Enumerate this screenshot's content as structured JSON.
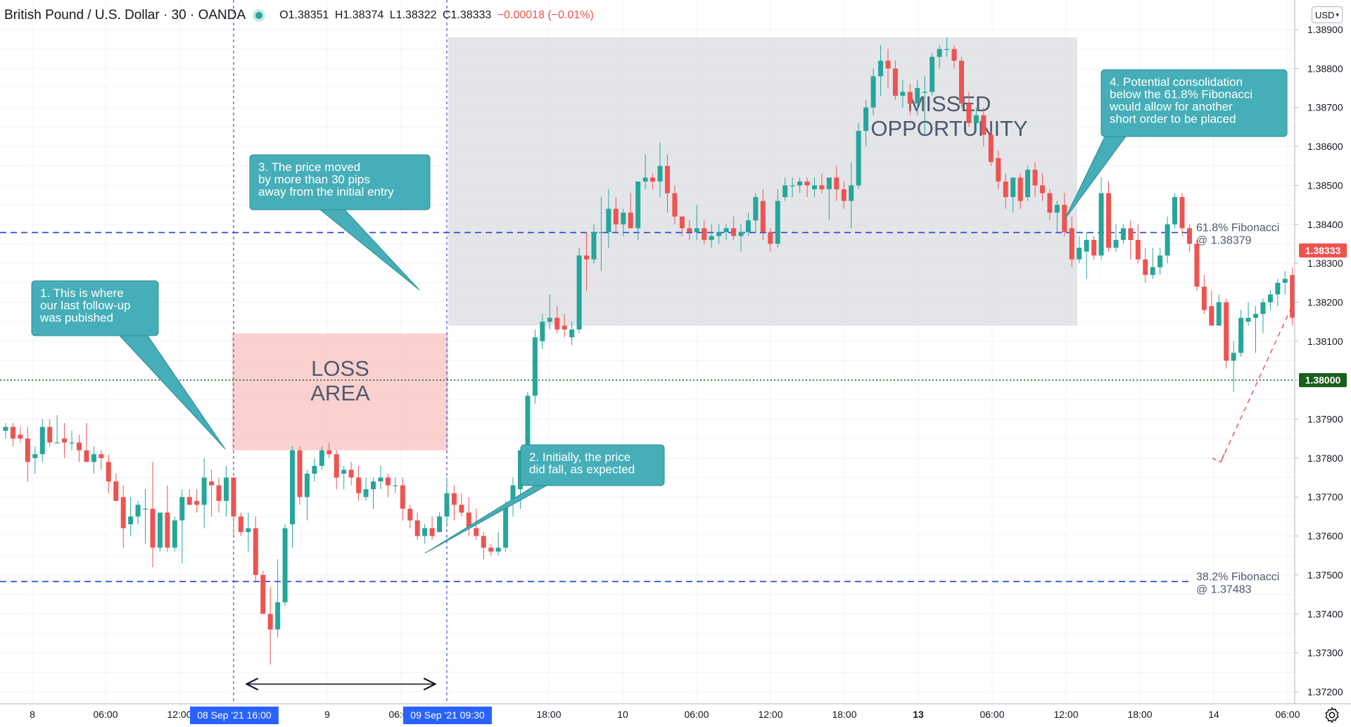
{
  "header": {
    "symbol": "British Pound / U.S. Dollar · 30 · OANDA",
    "open": "O1.38351",
    "high": "H1.38374",
    "low": "L1.38322",
    "close": "C1.38333",
    "change": "−0.00018 (−0.01%)"
  },
  "currency": "USD",
  "colors": {
    "up": "#26a69a",
    "down": "#ef5350",
    "fib_line": "#1e40d8",
    "callout": "#45aeb8",
    "loss_area": "#f9c9c6",
    "missed_area": "#d9dadf"
  },
  "chart_data": {
    "type": "candlestick",
    "instrument": "British Pound / U.S. Dollar",
    "timeframe": "30",
    "y_range": [
      1.3715,
      1.3893
    ],
    "y_ticks": [
      "1.38900",
      "1.38800",
      "1.38700",
      "1.38600",
      "1.38500",
      "1.38400",
      "1.38300",
      "1.38200",
      "1.38100",
      "1.38000",
      "1.37900",
      "1.37800",
      "1.37700",
      "1.37600",
      "1.37500",
      "1.37400",
      "1.37300",
      "1.37200"
    ],
    "x_labels": [
      "8",
      "06:00",
      "12:00",
      "9",
      "06:00",
      "18:00",
      "10",
      "06:00",
      "12:00",
      "18:00",
      "13",
      "06:00",
      "12:00",
      "18:00",
      "14",
      "06:00"
    ],
    "candles": [
      [
        1.3787,
        1.3789,
        1.3785,
        1.3788
      ],
      [
        1.3788,
        1.3789,
        1.3783,
        1.3785
      ],
      [
        1.3786,
        1.3788,
        1.3784,
        1.3785
      ],
      [
        1.3785,
        1.3788,
        1.3774,
        1.3779
      ],
      [
        1.378,
        1.3783,
        1.3776,
        1.3781
      ],
      [
        1.3781,
        1.379,
        1.3779,
        1.3788
      ],
      [
        1.3788,
        1.379,
        1.3783,
        1.3784
      ],
      [
        1.3784,
        1.3791,
        1.3784,
        1.3784
      ],
      [
        1.3785,
        1.3789,
        1.378,
        1.3784
      ],
      [
        1.3784,
        1.3787,
        1.3782,
        1.3784
      ],
      [
        1.3784,
        1.3786,
        1.3779,
        1.3782
      ],
      [
        1.3782,
        1.3789,
        1.3779,
        1.3779
      ],
      [
        1.3779,
        1.3783,
        1.3776,
        1.3781
      ],
      [
        1.3781,
        1.3782,
        1.3777,
        1.378
      ],
      [
        1.3779,
        1.3781,
        1.3771,
        1.3774
      ],
      [
        1.3774,
        1.3776,
        1.3769,
        1.3769
      ],
      [
        1.377,
        1.3773,
        1.3757,
        1.3762
      ],
      [
        1.3763,
        1.377,
        1.376,
        1.3765
      ],
      [
        1.3765,
        1.3769,
        1.3763,
        1.3768
      ],
      [
        1.3767,
        1.3772,
        1.3758,
        1.3767
      ],
      [
        1.3767,
        1.3779,
        1.3752,
        1.3757
      ],
      [
        1.3757,
        1.3766,
        1.3756,
        1.3766
      ],
      [
        1.3766,
        1.3773,
        1.3756,
        1.3757
      ],
      [
        1.3757,
        1.3765,
        1.3756,
        1.3764
      ],
      [
        1.3764,
        1.3772,
        1.3753,
        1.377
      ],
      [
        1.377,
        1.3772,
        1.3768,
        1.3768
      ],
      [
        1.3769,
        1.3772,
        1.3766,
        1.3768
      ],
      [
        1.3768,
        1.378,
        1.3762,
        1.3775
      ],
      [
        1.3774,
        1.3777,
        1.3765,
        1.3773
      ],
      [
        1.3773,
        1.3775,
        1.3766,
        1.3769
      ],
      [
        1.3769,
        1.3778,
        1.3765,
        1.3775
      ],
      [
        1.3775,
        1.3775,
        1.376,
        1.3765
      ],
      [
        1.3765,
        1.3766,
        1.376,
        1.3761
      ],
      [
        1.3761,
        1.3766,
        1.3756,
        1.3762
      ],
      [
        1.3762,
        1.3765,
        1.3748,
        1.375
      ],
      [
        1.375,
        1.3751,
        1.374,
        1.374
      ],
      [
        1.374,
        1.3747,
        1.3727,
        1.3736
      ],
      [
        1.3736,
        1.3754,
        1.3734,
        1.3743
      ],
      [
        1.3743,
        1.3763,
        1.3742,
        1.3762
      ],
      [
        1.3763,
        1.3783,
        1.3757,
        1.3782
      ],
      [
        1.3782,
        1.3783,
        1.3768,
        1.377
      ],
      [
        1.377,
        1.3777,
        1.3764,
        1.3776
      ],
      [
        1.3776,
        1.378,
        1.3774,
        1.3778
      ],
      [
        1.3778,
        1.3783,
        1.3777,
        1.3782
      ],
      [
        1.3782,
        1.3784,
        1.378,
        1.3781
      ],
      [
        1.3781,
        1.3782,
        1.3772,
        1.3775
      ],
      [
        1.3776,
        1.3778,
        1.3772,
        1.3777
      ],
      [
        1.3777,
        1.3779,
        1.3773,
        1.3775
      ],
      [
        1.3775,
        1.3778,
        1.3769,
        1.3771
      ],
      [
        1.377,
        1.3775,
        1.3769,
        1.3772
      ],
      [
        1.3772,
        1.3775,
        1.3767,
        1.3774
      ],
      [
        1.3774,
        1.3778,
        1.3772,
        1.3775
      ],
      [
        1.3775,
        1.3776,
        1.377,
        1.3773
      ],
      [
        1.3773,
        1.3775,
        1.3771,
        1.3773
      ],
      [
        1.3773,
        1.3775,
        1.3764,
        1.3767
      ],
      [
        1.3767,
        1.3768,
        1.3762,
        1.3764
      ],
      [
        1.3764,
        1.3766,
        1.3759,
        1.376
      ],
      [
        1.376,
        1.3763,
        1.3758,
        1.3762
      ],
      [
        1.3762,
        1.3765,
        1.3759,
        1.376
      ],
      [
        1.3761,
        1.3766,
        1.3761,
        1.3765
      ],
      [
        1.3765,
        1.3775,
        1.3763,
        1.3771
      ],
      [
        1.3771,
        1.3773,
        1.3764,
        1.3768
      ],
      [
        1.3768,
        1.3771,
        1.3765,
        1.3766
      ],
      [
        1.3766,
        1.377,
        1.376,
        1.3762
      ],
      [
        1.3762,
        1.3767,
        1.3759,
        1.376
      ],
      [
        1.376,
        1.3761,
        1.3754,
        1.3757
      ],
      [
        1.3757,
        1.3758,
        1.3755,
        1.3756
      ],
      [
        1.3756,
        1.3761,
        1.3755,
        1.3757
      ],
      [
        1.3757,
        1.3769,
        1.3756,
        1.3768
      ],
      [
        1.3769,
        1.3775,
        1.3765,
        1.3773
      ],
      [
        1.3772,
        1.3782,
        1.3767,
        1.3782
      ],
      [
        1.3782,
        1.3797,
        1.3781,
        1.3796
      ],
      [
        1.3796,
        1.3813,
        1.3794,
        1.3811
      ],
      [
        1.381,
        1.3817,
        1.3808,
        1.3815
      ],
      [
        1.3815,
        1.3822,
        1.3813,
        1.3816
      ],
      [
        1.3816,
        1.3819,
        1.3812,
        1.3813
      ],
      [
        1.3814,
        1.3817,
        1.3811,
        1.3813
      ],
      [
        1.3811,
        1.3815,
        1.3809,
        1.3813
      ],
      [
        1.3813,
        1.3834,
        1.3812,
        1.3832
      ],
      [
        1.3832,
        1.3838,
        1.3823,
        1.3831
      ],
      [
        1.3831,
        1.384,
        1.383,
        1.3838
      ],
      [
        1.3838,
        1.3847,
        1.3828,
        1.3838
      ],
      [
        1.3838,
        1.3849,
        1.3834,
        1.3844
      ],
      [
        1.3844,
        1.3847,
        1.3838,
        1.384
      ],
      [
        1.384,
        1.3844,
        1.3837,
        1.3843
      ],
      [
        1.3843,
        1.3848,
        1.3839,
        1.3839
      ],
      [
        1.3839,
        1.3851,
        1.3836,
        1.3851
      ],
      [
        1.3851,
        1.3858,
        1.3849,
        1.3852
      ],
      [
        1.3852,
        1.3853,
        1.3849,
        1.3851
      ],
      [
        1.3851,
        1.3861,
        1.3847,
        1.3855
      ],
      [
        1.3855,
        1.3858,
        1.3843,
        1.3848
      ],
      [
        1.3848,
        1.385,
        1.384,
        1.3842
      ],
      [
        1.3842,
        1.3842,
        1.3837,
        1.3839
      ],
      [
        1.3839,
        1.3841,
        1.3836,
        1.3838
      ],
      [
        1.3838,
        1.3845,
        1.3836,
        1.3839
      ],
      [
        1.3839,
        1.3841,
        1.3835,
        1.3836
      ],
      [
        1.3836,
        1.384,
        1.3834,
        1.3837
      ],
      [
        1.3837,
        1.384,
        1.3835,
        1.3838
      ],
      [
        1.3838,
        1.384,
        1.3836,
        1.3839
      ],
      [
        1.3839,
        1.3842,
        1.3836,
        1.3837
      ],
      [
        1.3837,
        1.384,
        1.3833,
        1.3838
      ],
      [
        1.3838,
        1.3843,
        1.3837,
        1.3841
      ],
      [
        1.3841,
        1.3848,
        1.3838,
        1.3847
      ],
      [
        1.3846,
        1.3849,
        1.3836,
        1.3838
      ],
      [
        1.3838,
        1.3839,
        1.3833,
        1.3835
      ],
      [
        1.3835,
        1.3849,
        1.3834,
        1.3846
      ],
      [
        1.3847,
        1.3852,
        1.3846,
        1.385
      ],
      [
        1.385,
        1.3852,
        1.3847,
        1.385
      ],
      [
        1.385,
        1.3852,
        1.3848,
        1.3851
      ],
      [
        1.3851,
        1.3852,
        1.3847,
        1.385
      ],
      [
        1.3849,
        1.3852,
        1.3847,
        1.385
      ],
      [
        1.385,
        1.3853,
        1.3848,
        1.3849
      ],
      [
        1.3849,
        1.3852,
        1.3841,
        1.3852
      ],
      [
        1.3852,
        1.3855,
        1.3846,
        1.3849
      ],
      [
        1.3849,
        1.3851,
        1.3844,
        1.3846
      ],
      [
        1.3846,
        1.3856,
        1.3839,
        1.385
      ],
      [
        1.385,
        1.3866,
        1.3849,
        1.3864
      ],
      [
        1.3864,
        1.3872,
        1.386,
        1.387
      ],
      [
        1.387,
        1.388,
        1.3868,
        1.3878
      ],
      [
        1.3878,
        1.3886,
        1.3873,
        1.3882
      ],
      [
        1.3882,
        1.3885,
        1.3875,
        1.388
      ],
      [
        1.388,
        1.3882,
        1.3872,
        1.3873
      ],
      [
        1.3873,
        1.3877,
        1.387,
        1.3874
      ],
      [
        1.3874,
        1.3876,
        1.3868,
        1.3871
      ],
      [
        1.3871,
        1.3877,
        1.3868,
        1.3875
      ],
      [
        1.3874,
        1.3878,
        1.3863,
        1.3874
      ],
      [
        1.3874,
        1.3884,
        1.3873,
        1.3883
      ],
      [
        1.3883,
        1.3886,
        1.388,
        1.3885
      ],
      [
        1.3885,
        1.3888,
        1.3883,
        1.3885
      ],
      [
        1.3885,
        1.3886,
        1.388,
        1.3882
      ],
      [
        1.3882,
        1.3883,
        1.387,
        1.3871
      ],
      [
        1.3871,
        1.3874,
        1.3865,
        1.3866
      ],
      [
        1.3866,
        1.387,
        1.3864,
        1.3868
      ],
      [
        1.3868,
        1.387,
        1.386,
        1.3863
      ],
      [
        1.3863,
        1.3864,
        1.3855,
        1.3856
      ],
      [
        1.3857,
        1.3859,
        1.3849,
        1.3851
      ],
      [
        1.3851,
        1.3853,
        1.3844,
        1.3847
      ],
      [
        1.3847,
        1.3852,
        1.3843,
        1.3852
      ],
      [
        1.3852,
        1.3853,
        1.3844,
        1.3846
      ],
      [
        1.3847,
        1.3855,
        1.3846,
        1.3854
      ],
      [
        1.3854,
        1.3856,
        1.3847,
        1.385
      ],
      [
        1.385,
        1.3853,
        1.3846,
        1.3848
      ],
      [
        1.3848,
        1.3849,
        1.3841,
        1.3843
      ],
      [
        1.3843,
        1.3846,
        1.3838,
        1.3845
      ],
      [
        1.3845,
        1.3848,
        1.3837,
        1.3838
      ],
      [
        1.3839,
        1.3842,
        1.3829,
        1.3831
      ],
      [
        1.3831,
        1.3837,
        1.383,
        1.3834
      ],
      [
        1.3833,
        1.3838,
        1.3826,
        1.3836
      ],
      [
        1.3836,
        1.3837,
        1.3831,
        1.3832
      ],
      [
        1.3832,
        1.3852,
        1.3831,
        1.3848
      ],
      [
        1.3848,
        1.3851,
        1.3833,
        1.3834
      ],
      [
        1.3834,
        1.384,
        1.3833,
        1.3836
      ],
      [
        1.3836,
        1.384,
        1.3835,
        1.3839
      ],
      [
        1.3839,
        1.3841,
        1.3831,
        1.3836
      ],
      [
        1.3836,
        1.384,
        1.383,
        1.3831
      ],
      [
        1.3831,
        1.3834,
        1.3825,
        1.3827
      ],
      [
        1.3827,
        1.3834,
        1.3826,
        1.3829
      ],
      [
        1.3829,
        1.3834,
        1.3827,
        1.3832
      ],
      [
        1.3832,
        1.3842,
        1.383,
        1.384
      ],
      [
        1.384,
        1.3848,
        1.3839,
        1.3847
      ],
      [
        1.3847,
        1.3848,
        1.3837,
        1.3839
      ],
      [
        1.3839,
        1.384,
        1.3833,
        1.3835
      ],
      [
        1.3835,
        1.3836,
        1.3823,
        1.3824
      ],
      [
        1.3824,
        1.3827,
        1.3817,
        1.3818
      ],
      [
        1.3819,
        1.3823,
        1.3815,
        1.3814
      ],
      [
        1.3814,
        1.3822,
        1.3814,
        1.382
      ],
      [
        1.382,
        1.3821,
        1.3803,
        1.3805
      ],
      [
        1.3805,
        1.381,
        1.3797,
        1.3807
      ],
      [
        1.3807,
        1.3818,
        1.3806,
        1.3816
      ],
      [
        1.3815,
        1.382,
        1.3814,
        1.3816
      ],
      [
        1.3816,
        1.3819,
        1.3807,
        1.3817
      ],
      [
        1.3817,
        1.3821,
        1.3812,
        1.382
      ],
      [
        1.382,
        1.3823,
        1.3818,
        1.3822
      ],
      [
        1.3822,
        1.3826,
        1.3819,
        1.3825
      ],
      [
        1.3825,
        1.3828,
        1.3822,
        1.3826
      ],
      [
        1.3827,
        1.3829,
        1.3814,
        1.3816
      ],
      [
        1.3816,
        1.383,
        1.3815,
        1.3826
      ],
      [
        1.3826,
        1.3841,
        1.3822,
        1.3836
      ],
      [
        1.3836,
        1.3839,
        1.3832,
        1.3833
      ]
    ],
    "horizontal_lines": [
      {
        "price": 1.38379,
        "style": "dashed",
        "label": "61.8% Fibonacci",
        "sublabel": "@ 1.38379"
      },
      {
        "price": 1.37483,
        "style": "dashed",
        "label": "38.2% Fibonacci",
        "sublabel": "@ 1.37483"
      },
      {
        "price": 1.38,
        "style": "dotted",
        "price_label": "1.38000"
      }
    ],
    "last_price_label": "1.38333",
    "time_markers": [
      "08 Sep '21   16:00",
      "09 Sep '21   09:30"
    ],
    "regions": [
      {
        "name": "loss-area",
        "label_lines": [
          "LOSS",
          "AREA"
        ],
        "from_candle": 31,
        "to_candle": 60,
        "price_from": 1.3782,
        "price_to": 1.3812
      },
      {
        "name": "missed-opportunity",
        "label_lines": [
          "MISSED",
          "OPPORTUNITY"
        ],
        "from_candle": 60,
        "to_candle": 146,
        "price_from": 1.3814,
        "price_to": 1.3888
      }
    ],
    "annotations": [
      {
        "id": "note1",
        "lines": [
          "1. This is where",
          "our last follow-up",
          "was pubished"
        ]
      },
      {
        "id": "note2",
        "lines": [
          "2. Initially, the price",
          "did fall, as expected"
        ]
      },
      {
        "id": "note3",
        "lines": [
          "3. The price moved",
          "by more than 30 pips",
          "away from the initial entry"
        ]
      },
      {
        "id": "note4",
        "lines": [
          "4. Potential consolidation",
          "below the 61.8% Fibonacci",
          "would allow for another",
          "short order to be placed"
        ]
      }
    ]
  }
}
